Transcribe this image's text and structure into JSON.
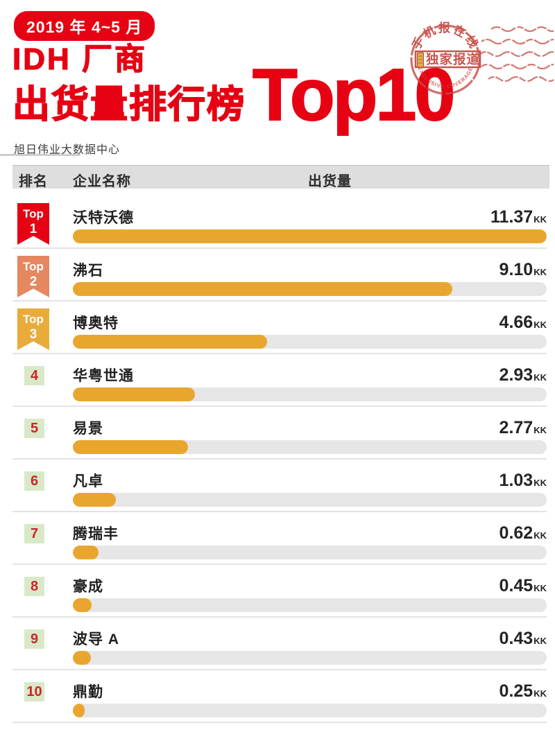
{
  "header": {
    "date_badge": "2019 年 4~5 月",
    "title_line1": "IDH 厂商",
    "title_line2": "出货量排行榜",
    "title_highlight": "Top10",
    "source": "旭日伟业大数据中心"
  },
  "stamp": {
    "arc_top": "手机报在线",
    "center_label": "独家报道",
    "arc_bottom": "EXCLUSIVE COVERAGE"
  },
  "table": {
    "columns": {
      "rank": "排名",
      "company": "企业名称",
      "shipment": "出货量"
    },
    "rank_prefix": "Top",
    "unit": "KK",
    "rows": [
      {
        "rank": "1",
        "company": "沃特沃德",
        "value": "11.37"
      },
      {
        "rank": "2",
        "company": "沸石",
        "value": "9.10"
      },
      {
        "rank": "3",
        "company": "博奥特",
        "value": "4.66"
      },
      {
        "rank": "4",
        "company": "华粤世通",
        "value": "2.93"
      },
      {
        "rank": "5",
        "company": "易景",
        "value": "2.77"
      },
      {
        "rank": "6",
        "company": "凡卓",
        "value": "1.03"
      },
      {
        "rank": "7",
        "company": "腾瑞丰",
        "value": "0.62"
      },
      {
        "rank": "8",
        "company": "豪成",
        "value": "0.45"
      },
      {
        "rank": "9",
        "company": "波导 A",
        "value": "0.43"
      },
      {
        "rank": "10",
        "company": "鼎勤",
        "value": "0.25"
      }
    ]
  },
  "chart_data": {
    "type": "bar",
    "orientation": "horizontal",
    "title": "IDH 厂商出货量排行榜 Top10（2019 年 4~5 月）",
    "categories": [
      "沃特沃德",
      "沸石",
      "博奥特",
      "华粤世通",
      "易景",
      "凡卓",
      "腾瑞丰",
      "豪成",
      "波导 A",
      "鼎勤"
    ],
    "values": [
      11.37,
      9.1,
      4.66,
      2.93,
      2.77,
      1.03,
      0.62,
      0.45,
      0.43,
      0.25
    ],
    "unit": "KK",
    "xlim": [
      0,
      11.37
    ],
    "grid": false,
    "legend": "none",
    "source": "旭日伟业大数据中心"
  },
  "colors": {
    "primary_red": "#e60113",
    "stamp_red": "#c4473e",
    "bar_fill": "#e9a62e",
    "bar_track": "#e6e6e6",
    "header_band": "#dedede",
    "rank_square_bg": "#d9e9c8",
    "rank_number_red": "#cc2429",
    "ribbon_top1": "#e60113",
    "ribbon_top2": "#e5875f",
    "ribbon_top3": "#e9ab3a",
    "separator": "#e3e3e3",
    "seal_icon_gold": "#dca73a"
  }
}
